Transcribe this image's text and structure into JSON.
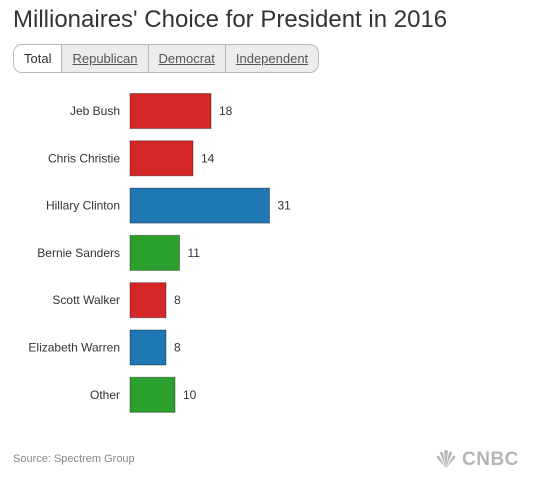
{
  "header": {
    "title": "Millionaires' Choice for President in 2016"
  },
  "tabs": [
    {
      "label": "Total",
      "active": true
    },
    {
      "label": "Republican",
      "active": false
    },
    {
      "label": "Democrat",
      "active": false
    },
    {
      "label": "Independent",
      "active": false
    }
  ],
  "chart_data": {
    "type": "bar",
    "orientation": "horizontal",
    "title": "Millionaires' Choice for President in 2016",
    "categories": [
      "Jeb Bush",
      "Chris Christie",
      "Hillary Clinton",
      "Bernie Sanders",
      "Scott Walker",
      "Elizabeth Warren",
      "Other"
    ],
    "values": [
      18,
      14,
      31,
      11,
      8,
      8,
      10
    ],
    "colors": [
      "#d62728",
      "#d62728",
      "#1f77b4",
      "#2ca02c",
      "#d62728",
      "#1f77b4",
      "#2ca02c"
    ],
    "grid": false,
    "legend": "none"
  },
  "footer": {
    "source": "Source: Spectrem Group",
    "logo": "CNBC"
  },
  "icons": {
    "logo": "nbc-peacock-icon"
  },
  "colors": {
    "republican": "#d62728",
    "democrat": "#1f77b4",
    "independent": "#2ca02c"
  }
}
